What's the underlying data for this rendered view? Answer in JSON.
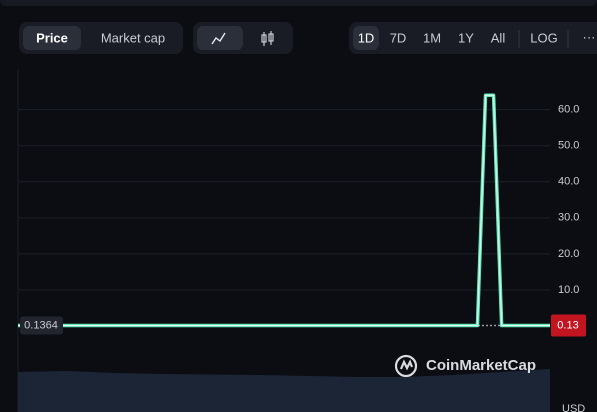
{
  "toolbar": {
    "metric_tabs": [
      "Price",
      "Market cap"
    ],
    "ranges": [
      "1D",
      "7D",
      "1M",
      "1Y",
      "All"
    ],
    "log": "LOG",
    "more": "···"
  },
  "chart_data": {
    "type": "line",
    "series": [
      {
        "color": "#5ee8b7",
        "values": [
          0.1364,
          0.1364,
          0.1364,
          0.1364,
          0.1364,
          0.1364,
          0.1364,
          0.1364,
          0.1364,
          0.1364,
          0.1364,
          0.1364,
          0.1364,
          0.1364,
          0.1364,
          0.1364,
          0.1364,
          0.1364,
          0.1364,
          0.1364,
          0.1364,
          0.1364,
          0.1364,
          0.1364,
          0.1364,
          0.1364,
          0.1364,
          0.1364,
          0.1364,
          0.1364,
          0.1364,
          0.1364,
          0.1364,
          0.1364,
          0.1364,
          0.1364,
          0.1364,
          0.1364,
          0.1364,
          0.1364,
          0.1364,
          0.1364,
          0.1364,
          0.1364,
          0.1364,
          0.1364,
          0.1364,
          0.1364,
          0.1364,
          0.1364,
          0.1364,
          0.1364,
          0.1364,
          0.1364,
          0.1364,
          0.1364,
          0.1364,
          0.1364,
          64,
          64,
          0.1364,
          0.1364,
          0.1364,
          0.1364,
          0.1364,
          0.1364,
          0.1364
        ]
      }
    ],
    "ylim": [
      0,
      71
    ],
    "yticks": [
      {
        "value": 10,
        "label": "10.0"
      },
      {
        "value": 20,
        "label": "20.0"
      },
      {
        "value": 30,
        "label": "30.0"
      },
      {
        "value": 40,
        "label": "40.0"
      },
      {
        "value": 50,
        "label": "50.0"
      },
      {
        "value": 60,
        "label": "60.0"
      }
    ],
    "grid": true,
    "reference_price": 0.1364,
    "current_price": 0.13,
    "currency": "USD",
    "watermark": "CoinMarketCap",
    "volume": {
      "color": "#1c2536",
      "values": [
        80,
        82,
        78,
        76,
        75,
        74,
        72,
        70,
        70,
        74,
        80,
        86
      ],
      "ylim": [
        0,
        100
      ]
    }
  }
}
